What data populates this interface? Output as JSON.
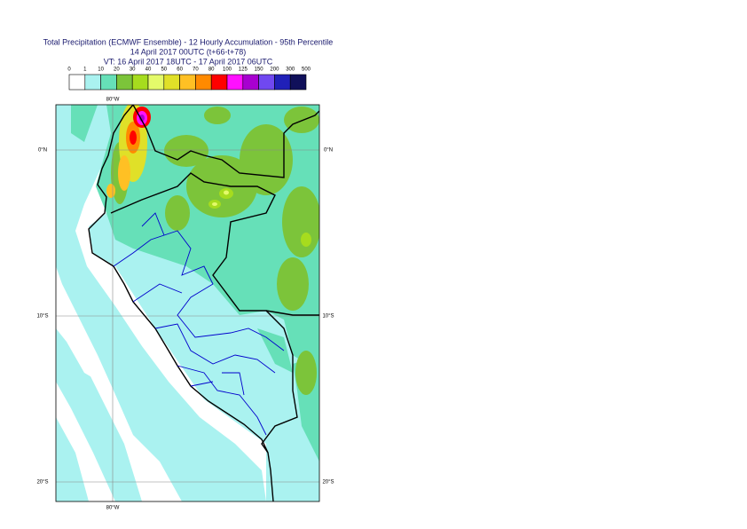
{
  "header": {
    "title_lines": [
      "Total Precipitation (ECMWF Ensemble) - 12 Hourly Accumulation - 95th Percentile",
      "14 April 2017 00UTC (t+66-t+78)",
      "VT: 16 April 2017 18UTC - 17 April 2017 06UTC"
    ]
  },
  "legend": {
    "thresholds": [
      0,
      1,
      10,
      20,
      30,
      40,
      50,
      60,
      70,
      80,
      100,
      125,
      150,
      200,
      300,
      500
    ],
    "colors": [
      "#ffffff",
      "#aaf2f0",
      "#66e0b8",
      "#7cc43a",
      "#a6dc1e",
      "#e4fa6a",
      "#e0e028",
      "#ffc024",
      "#ff8a00",
      "#ff0000",
      "#ff10ff",
      "#a800d0",
      "#7048f0",
      "#2020b8",
      "#10105a"
    ]
  },
  "map": {
    "lat_labels": [
      "0°N",
      "10°S",
      "20°S"
    ],
    "lon_labels": [
      "80°W"
    ]
  }
}
